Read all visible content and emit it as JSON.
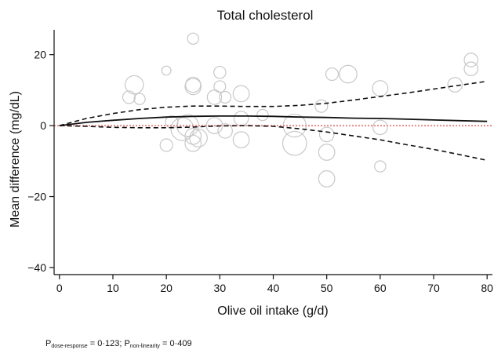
{
  "chart_data": {
    "type": "scatter",
    "title": "Total cholesterol",
    "xlabel": "Olive oil intake (g/d)",
    "ylabel": "Mean difference (mg/dL)",
    "xlim": [
      -1,
      81
    ],
    "ylim": [
      -42,
      27
    ],
    "xticks": [
      0,
      10,
      20,
      30,
      40,
      50,
      60,
      70,
      80
    ],
    "yticks": [
      20,
      0,
      -20,
      -40
    ],
    "ytick_labels": [
      "20",
      "0",
      "−20",
      "−40"
    ],
    "reference_line_y": 0,
    "reference_color": "#e88b8b",
    "bubble_color": "#c8c8c8",
    "study_estimates": [
      {
        "x": 25,
        "y": 24.5,
        "weight": 1.2
      },
      {
        "x": 20,
        "y": 15.5,
        "weight": 0.8
      },
      {
        "x": 14,
        "y": 11.5,
        "weight": 3.2
      },
      {
        "x": 15,
        "y": 7.5,
        "weight": 1.2
      },
      {
        "x": 13,
        "y": 8,
        "weight": 1.5
      },
      {
        "x": 21,
        "y": 1,
        "weight": 1.5
      },
      {
        "x": 20,
        "y": -5.5,
        "weight": 1.5
      },
      {
        "x": 23,
        "y": -1,
        "weight": 5
      },
      {
        "x": 25,
        "y": 11.5,
        "weight": 2.2
      },
      {
        "x": 25,
        "y": 11,
        "weight": 2.5
      },
      {
        "x": 24,
        "y": 0,
        "weight": 4.5
      },
      {
        "x": 25,
        "y": -3,
        "weight": 2.5
      },
      {
        "x": 26,
        "y": -3.5,
        "weight": 3
      },
      {
        "x": 25,
        "y": -5,
        "weight": 2.5
      },
      {
        "x": 30,
        "y": 15,
        "weight": 1.4
      },
      {
        "x": 30,
        "y": 11,
        "weight": 1.3
      },
      {
        "x": 29,
        "y": 8,
        "weight": 2
      },
      {
        "x": 31,
        "y": 8,
        "weight": 1.3
      },
      {
        "x": 29,
        "y": 0,
        "weight": 2.5
      },
      {
        "x": 31,
        "y": -1.5,
        "weight": 2
      },
      {
        "x": 34,
        "y": 9,
        "weight": 2.5
      },
      {
        "x": 34,
        "y": 2,
        "weight": 2
      },
      {
        "x": 34,
        "y": -4,
        "weight": 2.5
      },
      {
        "x": 38,
        "y": 3,
        "weight": 1.2
      },
      {
        "x": 44,
        "y": 0,
        "weight": 5
      },
      {
        "x": 44,
        "y": -5,
        "weight": 5.5
      },
      {
        "x": 49,
        "y": 5.5,
        "weight": 1.5
      },
      {
        "x": 51,
        "y": 14.5,
        "weight": 1.5
      },
      {
        "x": 54,
        "y": 14.5,
        "weight": 3
      },
      {
        "x": 50,
        "y": -2.5,
        "weight": 2
      },
      {
        "x": 50,
        "y": -7.5,
        "weight": 2.5
      },
      {
        "x": 50,
        "y": -15,
        "weight": 2.5
      },
      {
        "x": 60,
        "y": 10.5,
        "weight": 2.3
      },
      {
        "x": 60,
        "y": -0.5,
        "weight": 2
      },
      {
        "x": 60,
        "y": -11.5,
        "weight": 1.2
      },
      {
        "x": 74,
        "y": 11.5,
        "weight": 2
      },
      {
        "x": 77,
        "y": 18.5,
        "weight": 1.8
      },
      {
        "x": 77,
        "y": 16,
        "weight": 1.8
      }
    ],
    "series": [
      {
        "style": "solid",
        "x": [
          0,
          5,
          10,
          15,
          20,
          25,
          30,
          35,
          40,
          45,
          50,
          55,
          60,
          65,
          70,
          75,
          80
        ],
        "y": [
          0,
          0.9,
          1.5,
          2,
          2.4,
          2.6,
          2.7,
          2.7,
          2.6,
          2.4,
          2.3,
          2.1,
          2,
          1.8,
          1.6,
          1.4,
          1.2
        ]
      },
      {
        "style": "dashed",
        "x": [
          0,
          5,
          10,
          15,
          20,
          25,
          30,
          35,
          40,
          45,
          50,
          55,
          60,
          65,
          70,
          75,
          80
        ],
        "y": [
          0,
          2,
          3.4,
          4.5,
          5.2,
          5.5,
          5.5,
          5.4,
          5.4,
          5.7,
          6.3,
          7.2,
          8.2,
          9.2,
          10.3,
          11.4,
          12.5
        ]
      },
      {
        "style": "dashed",
        "x": [
          0,
          5,
          10,
          15,
          20,
          25,
          30,
          35,
          40,
          45,
          50,
          55,
          60,
          65,
          70,
          75,
          80
        ],
        "y": [
          0,
          -0.2,
          -0.5,
          -0.6,
          -0.6,
          -0.4,
          -0.1,
          0,
          -0.2,
          -0.9,
          -1.8,
          -2.9,
          -4,
          -5.4,
          -6.7,
          -8.2,
          -9.8
        ]
      }
    ],
    "grid": false,
    "legend": "none"
  },
  "footnote": {
    "p": "P",
    "dose_sub": "dose-response",
    "dose_val": " = 0·123; ",
    "nonlin_sub": "non-linearity",
    "nonlin_val": " = 0·409"
  }
}
